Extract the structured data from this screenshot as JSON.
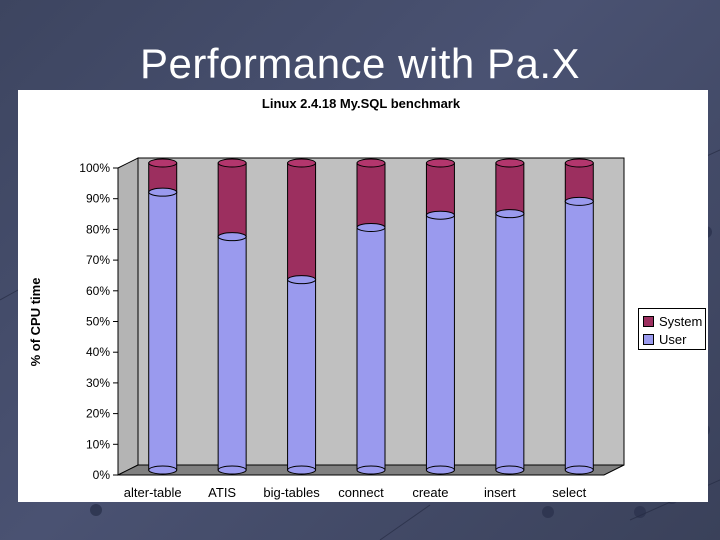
{
  "slide": {
    "title": "Performance with Pa.X"
  },
  "colors": {
    "user": "#9a9aee",
    "system": "#9c2f5f",
    "plot_wall": "#c0c0c0",
    "plot_floor": "#808080"
  },
  "chart_data": {
    "type": "bar",
    "stacked": true,
    "three_d": true,
    "title": "Linux 2.4.18 My.SQL benchmark",
    "xlabel": "",
    "ylabel": "% of CPU time",
    "ylim": [
      0,
      100
    ],
    "yticks": [
      "0%",
      "10%",
      "20%",
      "30%",
      "40%",
      "50%",
      "60%",
      "70%",
      "80%",
      "90%",
      "100%"
    ],
    "categories": [
      "alter-table",
      "ATIS",
      "big-tables",
      "connect",
      "create",
      "insert",
      "select"
    ],
    "series": [
      {
        "name": "User",
        "values": [
          90.5,
          76,
          62,
          79,
          83,
          83.5,
          87.5
        ]
      },
      {
        "name": "System",
        "values": [
          9.5,
          24,
          38,
          21,
          17,
          16.5,
          12.5
        ]
      }
    ],
    "legend": {
      "position": "right",
      "entries": [
        "System",
        "User"
      ]
    },
    "grid": false
  }
}
